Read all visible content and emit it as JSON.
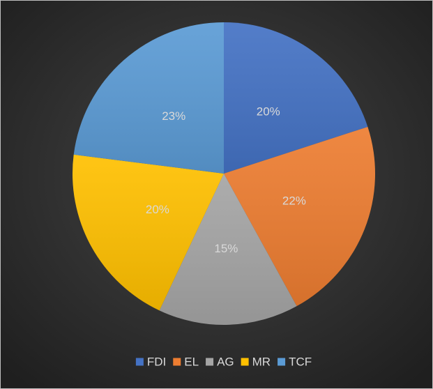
{
  "chart_data": {
    "type": "pie",
    "categories": [
      "FDI",
      "EL",
      "AG",
      "MR",
      "TCF"
    ],
    "values": [
      20,
      22,
      15,
      20,
      23
    ],
    "value_labels": [
      "20%",
      "22%",
      "15%",
      "20%",
      "23%"
    ],
    "colors": [
      "#4472c4",
      "#ed7d31",
      "#a5a5a5",
      "#ffc000",
      "#5b9bd5"
    ],
    "legend": "bottom"
  }
}
